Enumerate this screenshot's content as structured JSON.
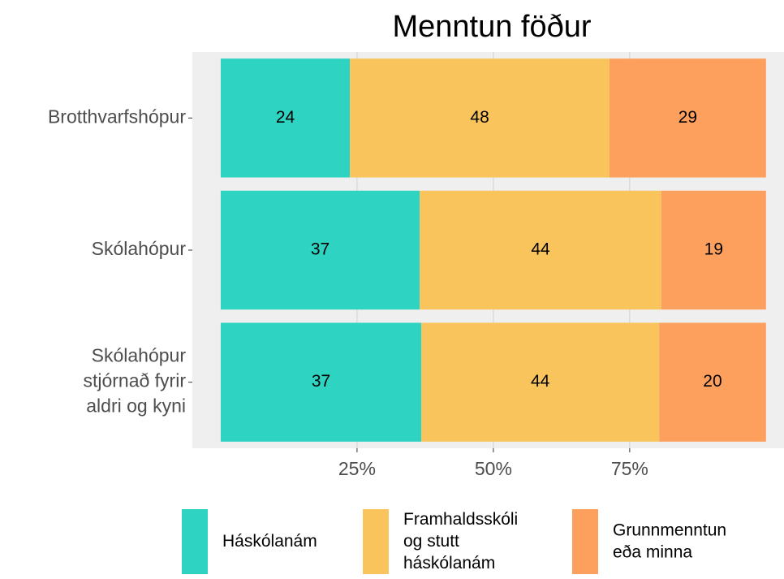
{
  "chart_data": {
    "type": "stacked-barh",
    "title": "Menntun föður",
    "categories": [
      "Brotthvarfshópur",
      "Skólahópur",
      "Skólahópur\nstjórnað fyrir\naldri og kyni"
    ],
    "series": [
      {
        "name": "Háskólanám",
        "color": "#2ed3c2",
        "values": [
          23.7,
          36.5,
          36.8
        ],
        "value_labels": [
          "24",
          "37",
          "37"
        ]
      },
      {
        "name": "Framhaldsskóli\nog stutt\nháskólanám",
        "color": "#f9c45c",
        "values": [
          47.6,
          44.3,
          43.6
        ],
        "value_labels": [
          "48",
          "44",
          "44"
        ]
      },
      {
        "name": "Grunnmenntun\neða minna",
        "color": "#fda05e",
        "values": [
          28.7,
          19.2,
          19.6
        ],
        "value_labels": [
          "29",
          "19",
          "20"
        ]
      }
    ],
    "xlim": [
      -5.2,
      103.3
    ],
    "xticks": [
      {
        "value": 25,
        "label": "25%"
      },
      {
        "value": 50,
        "label": "50%"
      },
      {
        "value": 75,
        "label": "75%"
      }
    ],
    "grid": true,
    "legend": "bottom"
  }
}
